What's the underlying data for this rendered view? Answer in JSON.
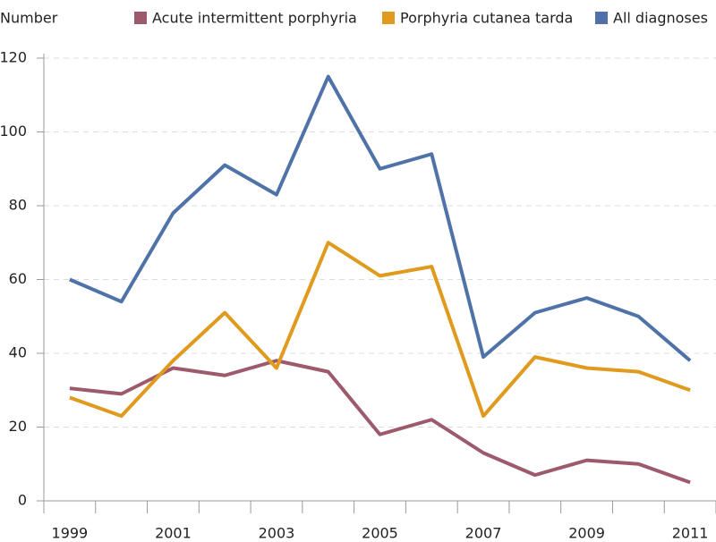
{
  "chart_data": {
    "type": "line",
    "y_label": "Number",
    "categories": [
      "1999",
      null,
      "2001",
      null,
      "2003",
      null,
      "2005",
      null,
      "2007",
      null,
      "2009",
      null,
      "2011"
    ],
    "series": [
      {
        "name": "Acute intermittent porphyria",
        "color": "#9c5a6c",
        "values": [
          30.5,
          29,
          36,
          34,
          38,
          35,
          18,
          22,
          13,
          7,
          11,
          10,
          5
        ]
      },
      {
        "name": "Porphyria cutanea tarda",
        "color": "#e09a1e",
        "values": [
          28,
          23,
          38,
          51,
          36,
          70,
          61,
          63.5,
          23,
          39,
          36,
          35,
          30
        ]
      },
      {
        "name": "All diagnoses",
        "color": "#4f72a8",
        "values": [
          60,
          54,
          78,
          91,
          83,
          115,
          90,
          94,
          39,
          51,
          55,
          50,
          38
        ]
      }
    ],
    "ylim": [
      0,
      120
    ],
    "yticks": [
      0,
      20,
      40,
      60,
      80,
      100,
      120
    ],
    "grid": true
  }
}
